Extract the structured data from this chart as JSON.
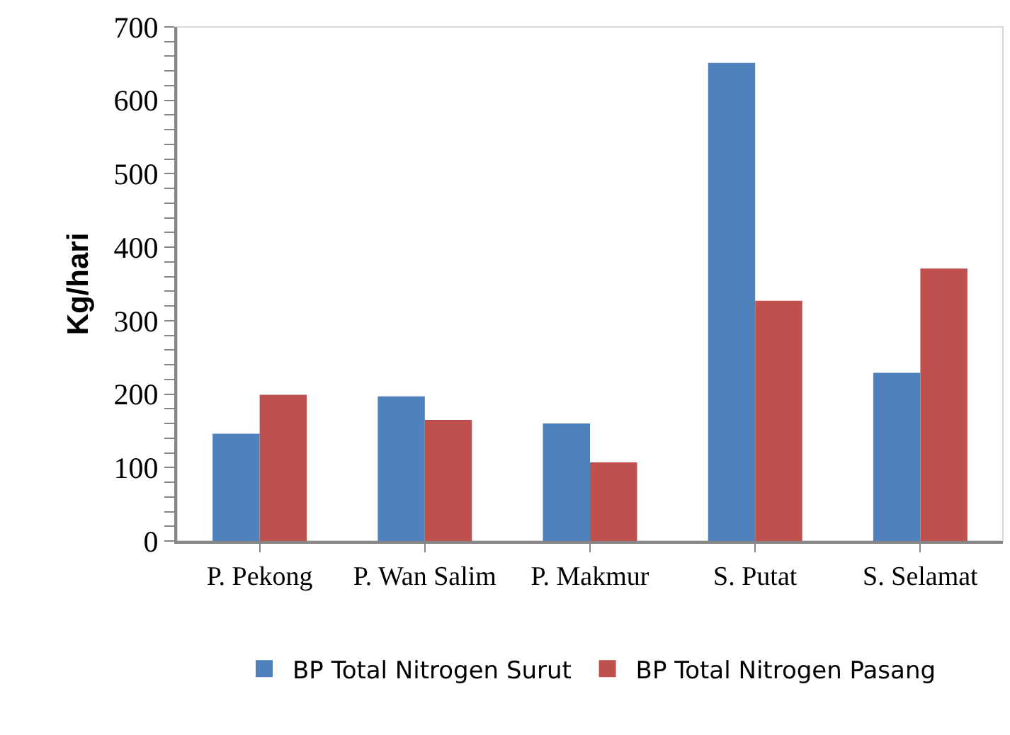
{
  "chart_data": {
    "type": "bar",
    "ylabel": "Kg/hari",
    "categories": [
      "P. Pekong",
      "P. Wan Salim",
      "P. Makmur",
      "S. Putat",
      "S. Selamat"
    ],
    "series": [
      {
        "name": "BP Total Nitrogen Surut",
        "color": "#4f81bd",
        "values": [
          146,
          197,
          160,
          651,
          229
        ]
      },
      {
        "name": "BP Total Nitrogen Pasang",
        "color": "#c0504d",
        "values": [
          199,
          165,
          107,
          327,
          371
        ]
      }
    ],
    "ylim": [
      0,
      700
    ],
    "yticks": [
      0,
      {
        "value": 20,
        "label": null
      },
      {
        "value": 40,
        "label": null
      },
      {
        "value": 60,
        "label": null
      },
      {
        "value": 80,
        "label": null
      },
      100,
      {
        "value": 120,
        "label": null
      },
      {
        "value": 140,
        "label": null
      },
      {
        "value": 160,
        "label": null
      },
      {
        "value": 180,
        "label": null
      },
      200,
      {
        "value": 220,
        "label": null
      },
      {
        "value": 240,
        "label": null
      },
      {
        "value": 260,
        "label": null
      },
      {
        "value": 280,
        "label": null
      },
      300,
      {
        "value": 320,
        "label": null
      },
      {
        "value": 340,
        "label": null
      },
      {
        "value": 360,
        "label": null
      },
      {
        "value": 380,
        "label": null
      },
      400,
      {
        "value": 420,
        "label": null
      },
      {
        "value": 440,
        "label": null
      },
      {
        "value": 460,
        "label": null
      },
      {
        "value": 480,
        "label": null
      },
      500,
      {
        "value": 520,
        "label": null
      },
      {
        "value": 540,
        "label": null
      },
      {
        "value": 560,
        "label": null
      },
      {
        "value": 580,
        "label": null
      },
      600,
      {
        "value": 620,
        "label": null
      },
      {
        "value": 640,
        "label": null
      },
      {
        "value": 660,
        "label": null
      },
      {
        "value": 680,
        "label": null
      },
      700
    ],
    "grid": false,
    "legend": "bottom"
  }
}
